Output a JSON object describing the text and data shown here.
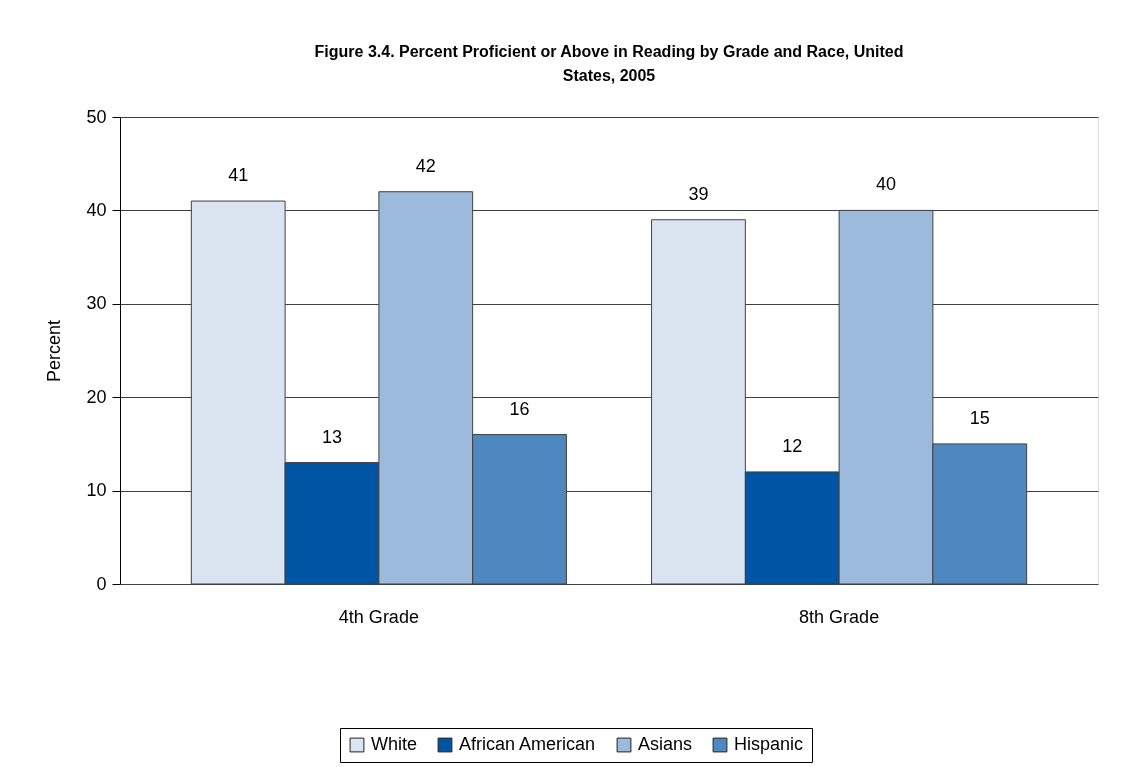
{
  "chart_data": {
    "type": "bar",
    "title": "Figure 3.4. Percent Proficient or Above in Reading by Grade and Race, United States, 2005",
    "ylabel": "Percent",
    "categories": [
      "4th Grade",
      "8th Grade"
    ],
    "series": [
      {
        "name": "White",
        "color": "#dbe5f1",
        "values": [
          41,
          39
        ]
      },
      {
        "name": "African American",
        "color": "#0054a4",
        "values": [
          13,
          12
        ]
      },
      {
        "name": "Asians",
        "color": "#9bbadc",
        "values": [
          42,
          40
        ]
      },
      {
        "name": "Hispanic",
        "color": "#4f88c0",
        "values": [
          16,
          15
        ]
      }
    ],
    "ylim": [
      0,
      50
    ],
    "yticks": [
      0,
      10,
      20,
      30,
      40,
      50
    ],
    "data_labels": true,
    "grid": "y",
    "legend": "bottom"
  }
}
